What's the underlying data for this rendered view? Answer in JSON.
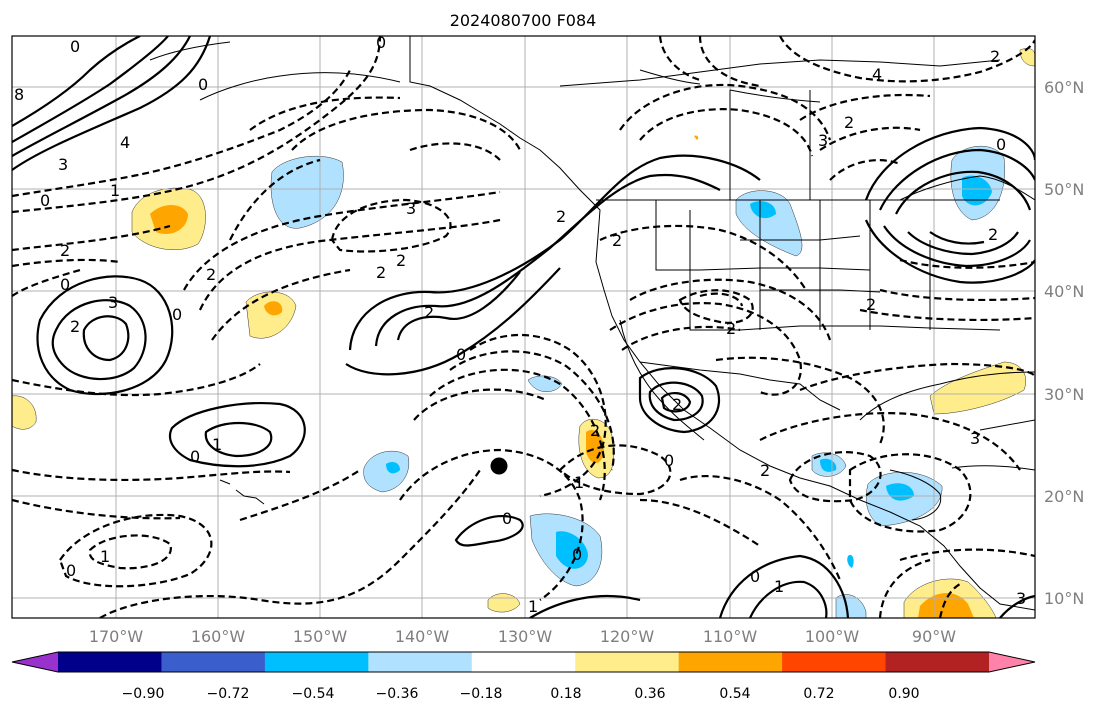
{
  "title": "2024080700 F084",
  "map": {
    "lon_labels": [
      "170°W",
      "160°W",
      "150°W",
      "140°W",
      "130°W",
      "120°W",
      "110°W",
      "100°W",
      "90°W"
    ],
    "lat_labels": [
      "60°N",
      "50°N",
      "40°N",
      "30°N",
      "20°N",
      "10°N"
    ],
    "contour_labels": [
      "8",
      "0",
      "4",
      "3",
      "0",
      "1",
      "0",
      "2",
      "0",
      "2",
      "3",
      "2",
      "3",
      "0",
      "2",
      "2",
      "0",
      "2",
      "2",
      "1",
      "0",
      "2",
      "2",
      "2",
      "3",
      "2",
      "0",
      "2",
      "0",
      "2",
      "2",
      "0",
      "1",
      "0",
      "1",
      "0",
      "1",
      "0",
      "1",
      "3",
      "4",
      "0",
      "2",
      "2",
      "3"
    ]
  },
  "colorbar": {
    "tick_labels": [
      "−0.90",
      "−0.72",
      "−0.54",
      "−0.36",
      "−0.18",
      "0.18",
      "0.36",
      "0.54",
      "0.72",
      "0.90"
    ],
    "colors": [
      "#9932cc",
      "#00008b",
      "#3a5fcd",
      "#00bfff",
      "#b0e2ff",
      "#ffffff",
      "#ffec8b",
      "#ffa500",
      "#ff4500",
      "#b22222",
      "#ff82ab"
    ]
  }
}
